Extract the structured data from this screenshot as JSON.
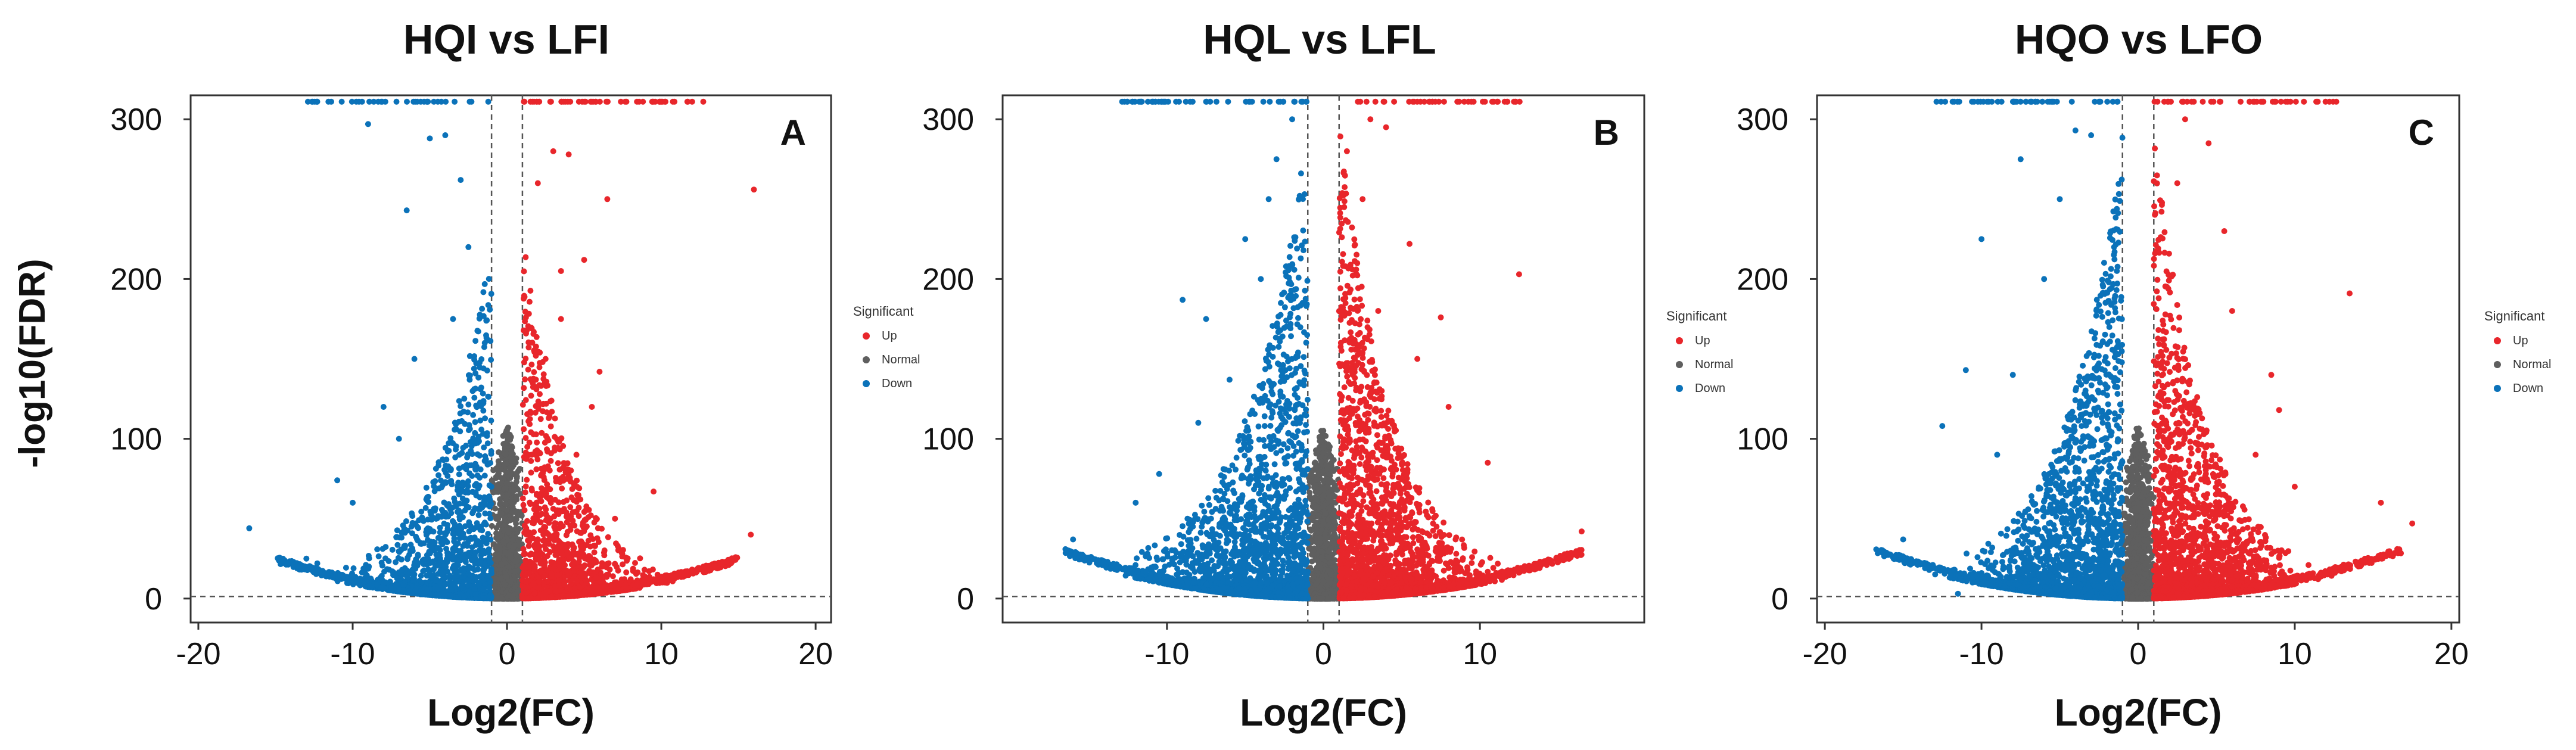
{
  "figure": {
    "shared_ylabel": "-log10(FDR)"
  },
  "legend": {
    "title": "Significant",
    "items": [
      {
        "label": "Up",
        "color": "#E8262B"
      },
      {
        "label": "Normal",
        "color": "#5F5F5F"
      },
      {
        "label": "Down",
        "color": "#0B72B9"
      }
    ]
  },
  "chart_data": [
    {
      "type": "scatter",
      "title": "HQI vs LFI",
      "panel_label": "A",
      "xlabel": "Log2(FC)",
      "ylabel": "-log10(FDR)",
      "xlim": [
        -20.5,
        21
      ],
      "ylim": [
        -15,
        315
      ],
      "xticks": [
        -20,
        -10,
        0,
        10,
        20
      ],
      "xtick_labels": [
        "-20",
        "-10",
        "0",
        "10",
        "20"
      ],
      "yticks": [
        0,
        100,
        200,
        300
      ],
      "ytick_labels": [
        "0",
        "100",
        "200",
        "300"
      ],
      "fc_threshold_lines": [
        -1,
        1
      ],
      "fdr_threshold_line": 1.3,
      "series": [
        {
          "name": "Up",
          "color": "#E8262B",
          "points": [
            [
              16,
              256
            ],
            [
              6.5,
              250
            ],
            [
              3,
              280
            ],
            [
              4,
              278
            ],
            [
              2,
              260
            ],
            [
              5,
              212
            ],
            [
              3.5,
              205
            ],
            [
              6,
              142
            ],
            [
              5.5,
              120
            ],
            [
              9.5,
              67
            ],
            [
              15.8,
              40
            ],
            [
              4.5,
              90
            ],
            [
              3.5,
              175
            ],
            [
              2.5,
              150
            ],
            [
              7,
              50
            ]
          ]
        },
        {
          "name": "Down",
          "color": "#0B72B9",
          "points": [
            [
              -9,
              297
            ],
            [
              -6.5,
              243
            ],
            [
              -4,
              290
            ],
            [
              -5,
              288
            ],
            [
              -3,
              262
            ],
            [
              -16.7,
              44
            ],
            [
              -13,
              25
            ],
            [
              -11,
              74
            ],
            [
              -8,
              120
            ],
            [
              -6,
              150
            ],
            [
              -7,
              100
            ],
            [
              -3.5,
              175
            ],
            [
              -2.5,
              220
            ],
            [
              -10,
              60
            ]
          ]
        }
      ]
    },
    {
      "type": "scatter",
      "title": "HQL vs LFL",
      "panel_label": "B",
      "xlabel": "Log2(FC)",
      "ylabel": "",
      "xlim": [
        -20.5,
        20.5
      ],
      "ylim": [
        -15,
        315
      ],
      "xticks": [
        -10,
        0,
        10
      ],
      "xtick_labels": [
        "-10",
        "0",
        "10"
      ],
      "yticks": [
        0,
        100,
        200,
        300
      ],
      "ytick_labels": [
        "0",
        "100",
        "200",
        "300"
      ],
      "fc_threshold_lines": [
        -1,
        1
      ],
      "fdr_threshold_line": 1.3,
      "series": [
        {
          "name": "Up",
          "color": "#E8262B",
          "points": [
            [
              12.5,
              203
            ],
            [
              7.5,
              176
            ],
            [
              5.5,
              222
            ],
            [
              3,
              300
            ],
            [
              4,
              295
            ],
            [
              1.5,
              280
            ],
            [
              2.5,
              250
            ],
            [
              8,
              120
            ],
            [
              10.5,
              85
            ],
            [
              16.5,
              42
            ],
            [
              6,
              150
            ],
            [
              3.5,
              180
            ]
          ]
        },
        {
          "name": "Down",
          "color": "#0B72B9",
          "points": [
            [
              -16,
              37
            ],
            [
              -9,
              187
            ],
            [
              -7.5,
              175
            ],
            [
              -5,
              225
            ],
            [
              -3,
              275
            ],
            [
              -2,
              300
            ],
            [
              -6,
              137
            ],
            [
              -10.5,
              78
            ],
            [
              -12,
              60
            ],
            [
              -8,
              110
            ],
            [
              -4,
              200
            ],
            [
              -3.5,
              250
            ]
          ]
        }
      ]
    },
    {
      "type": "scatter",
      "title": "HQO vs LFO",
      "panel_label": "C",
      "xlabel": "Log2(FC)",
      "ylabel": "",
      "xlim": [
        -20.5,
        20.5
      ],
      "ylim": [
        -15,
        315
      ],
      "xticks": [
        -20,
        -10,
        0,
        10,
        20
      ],
      "xtick_labels": [
        "-20",
        "-10",
        "0",
        "10",
        "20"
      ],
      "yticks": [
        0,
        100,
        200,
        300
      ],
      "ytick_labels": [
        "0",
        "100",
        "200",
        "300"
      ],
      "fc_threshold_lines": [
        -1,
        1
      ],
      "fdr_threshold_line": 1.3,
      "series": [
        {
          "name": "Up",
          "color": "#E8262B",
          "points": [
            [
              13.5,
              191
            ],
            [
              4.5,
              285
            ],
            [
              3,
              300
            ],
            [
              5.5,
              230
            ],
            [
              8.5,
              140
            ],
            [
              9,
              118
            ],
            [
              7.5,
              90
            ],
            [
              15.5,
              60
            ],
            [
              17.5,
              47
            ],
            [
              6,
              180
            ],
            [
              2.5,
              260
            ],
            [
              10,
              70
            ]
          ]
        },
        {
          "name": "Down",
          "color": "#0B72B9",
          "points": [
            [
              -10,
              225
            ],
            [
              -7.5,
              275
            ],
            [
              -4,
              293
            ],
            [
              -3,
              290
            ],
            [
              -12.5,
              108
            ],
            [
              -11,
              143
            ],
            [
              -8,
              140
            ],
            [
              -15,
              37
            ],
            [
              -11.5,
              3
            ],
            [
              -6,
              200
            ],
            [
              -5,
              250
            ],
            [
              -9,
              90
            ]
          ]
        }
      ]
    }
  ]
}
